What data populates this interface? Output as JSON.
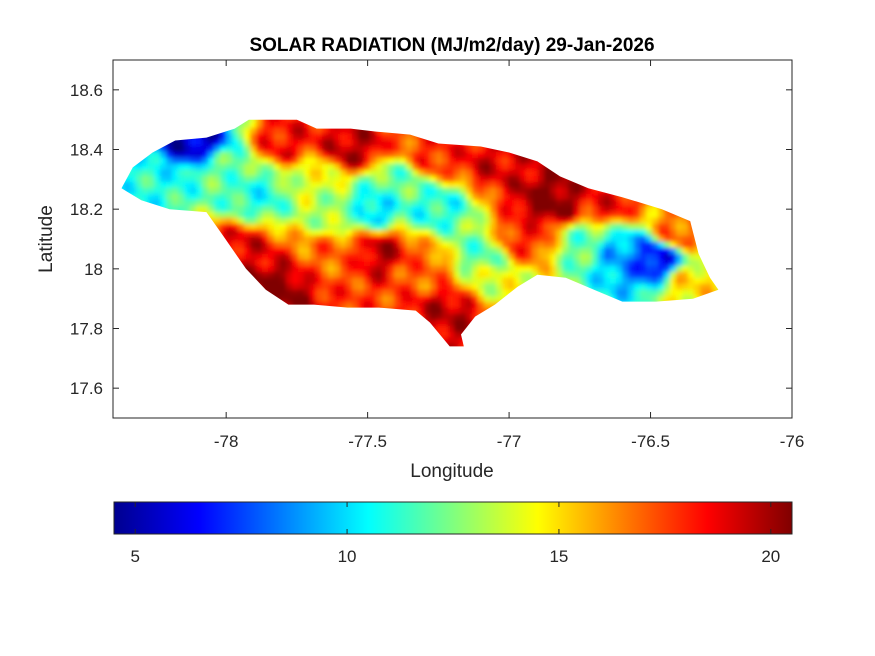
{
  "chart_data": {
    "type": "heatmap",
    "title": "SOLAR RADIATION (MJ/m2/day) 29-Jan-2026",
    "xlabel": "Longitude",
    "ylabel": "Latitude",
    "xlim": [
      -78.4,
      -76
    ],
    "ylim": [
      17.5,
      18.7
    ],
    "xticks": [
      -78,
      -77.5,
      -77,
      -76.5,
      -76
    ],
    "xtick_labels": [
      "-78",
      "-77.5",
      "-77",
      "-76.5",
      "-76"
    ],
    "yticks": [
      17.6,
      17.8,
      18,
      18.2,
      18.4,
      18.6
    ],
    "ytick_labels": [
      "17.6",
      "17.8",
      "18",
      "18.2",
      "18.4",
      "18.6"
    ],
    "grid": false,
    "colormap": "jet",
    "colorbar": {
      "orientation": "horizontal",
      "position": "bottom",
      "limits": [
        4.5,
        20.5
      ],
      "ticks": [
        5,
        10,
        15,
        20
      ],
      "tick_labels": [
        "5",
        "10",
        "15",
        "20"
      ]
    },
    "region_outline": [
      [
        -78.37,
        18.27
      ],
      [
        -78.33,
        18.34
      ],
      [
        -78.26,
        18.39
      ],
      [
        -78.18,
        18.43
      ],
      [
        -78.07,
        18.44
      ],
      [
        -77.97,
        18.47
      ],
      [
        -77.92,
        18.5
      ],
      [
        -77.75,
        18.5
      ],
      [
        -77.68,
        18.47
      ],
      [
        -77.56,
        18.47
      ],
      [
        -77.47,
        18.46
      ],
      [
        -77.35,
        18.45
      ],
      [
        -77.25,
        18.42
      ],
      [
        -77.1,
        18.41
      ],
      [
        -77.0,
        18.39
      ],
      [
        -76.9,
        18.36
      ],
      [
        -76.82,
        18.31
      ],
      [
        -76.72,
        18.27
      ],
      [
        -76.6,
        18.24
      ],
      [
        -76.46,
        18.2
      ],
      [
        -76.36,
        18.16
      ],
      [
        -76.33,
        18.05
      ],
      [
        -76.29,
        17.97
      ],
      [
        -76.26,
        17.93
      ],
      [
        -76.35,
        17.9
      ],
      [
        -76.48,
        17.89
      ],
      [
        -76.6,
        17.89
      ],
      [
        -76.7,
        17.93
      ],
      [
        -76.8,
        17.97
      ],
      [
        -76.9,
        17.98
      ],
      [
        -76.97,
        17.94
      ],
      [
        -77.05,
        17.88
      ],
      [
        -77.12,
        17.84
      ],
      [
        -77.17,
        17.78
      ],
      [
        -77.16,
        17.74
      ],
      [
        -77.21,
        17.74
      ],
      [
        -77.28,
        17.82
      ],
      [
        -77.33,
        17.86
      ],
      [
        -77.46,
        17.87
      ],
      [
        -77.57,
        17.87
      ],
      [
        -77.69,
        17.88
      ],
      [
        -77.78,
        17.88
      ],
      [
        -77.86,
        17.93
      ],
      [
        -77.93,
        18.0
      ],
      [
        -78.01,
        18.11
      ],
      [
        -78.07,
        18.19
      ],
      [
        -78.2,
        18.2
      ],
      [
        -78.3,
        18.23
      ]
    ],
    "value_hotspots": [
      {
        "lon": -78.12,
        "lat": 18.43,
        "value": 5.5
      },
      {
        "lon": -78.28,
        "lat": 18.3,
        "value": 11
      },
      {
        "lon": -78.0,
        "lat": 18.32,
        "value": 12
      },
      {
        "lon": -77.88,
        "lat": 18.25,
        "value": 11
      },
      {
        "lon": -77.78,
        "lat": 18.42,
        "value": 18.5
      },
      {
        "lon": -77.55,
        "lat": 18.4,
        "value": 19.5
      },
      {
        "lon": -77.4,
        "lat": 18.28,
        "value": 12
      },
      {
        "lon": -77.25,
        "lat": 18.2,
        "value": 11
      },
      {
        "lon": -77.25,
        "lat": 18.38,
        "value": 18
      },
      {
        "lon": -77.05,
        "lat": 18.35,
        "value": 19
      },
      {
        "lon": -76.85,
        "lat": 18.22,
        "value": 20.5
      },
      {
        "lon": -76.65,
        "lat": 18.22,
        "value": 18.5
      },
      {
        "lon": -76.95,
        "lat": 18.1,
        "value": 18
      },
      {
        "lon": -76.48,
        "lat": 18.03,
        "value": 6.5
      },
      {
        "lon": -76.6,
        "lat": 18.05,
        "value": 9
      },
      {
        "lon": -76.72,
        "lat": 18.08,
        "value": 12
      },
      {
        "lon": -76.35,
        "lat": 17.95,
        "value": 15
      },
      {
        "lon": -76.4,
        "lat": 18.12,
        "value": 17
      },
      {
        "lon": -77.95,
        "lat": 18.05,
        "value": 19
      },
      {
        "lon": -77.85,
        "lat": 17.92,
        "value": 20.5
      },
      {
        "lon": -77.6,
        "lat": 18.05,
        "value": 17
      },
      {
        "lon": -77.6,
        "lat": 18.18,
        "value": 13
      },
      {
        "lon": -77.45,
        "lat": 18.05,
        "value": 19.5
      },
      {
        "lon": -77.3,
        "lat": 18.0,
        "value": 17
      },
      {
        "lon": -77.2,
        "lat": 17.85,
        "value": 19.5
      },
      {
        "lon": -77.1,
        "lat": 18.05,
        "value": 12
      },
      {
        "lon": -77.05,
        "lat": 17.95,
        "value": 14
      },
      {
        "lon": -77.7,
        "lat": 18.3,
        "value": 14
      },
      {
        "lon": -77.48,
        "lat": 18.2,
        "value": 10
      }
    ]
  }
}
